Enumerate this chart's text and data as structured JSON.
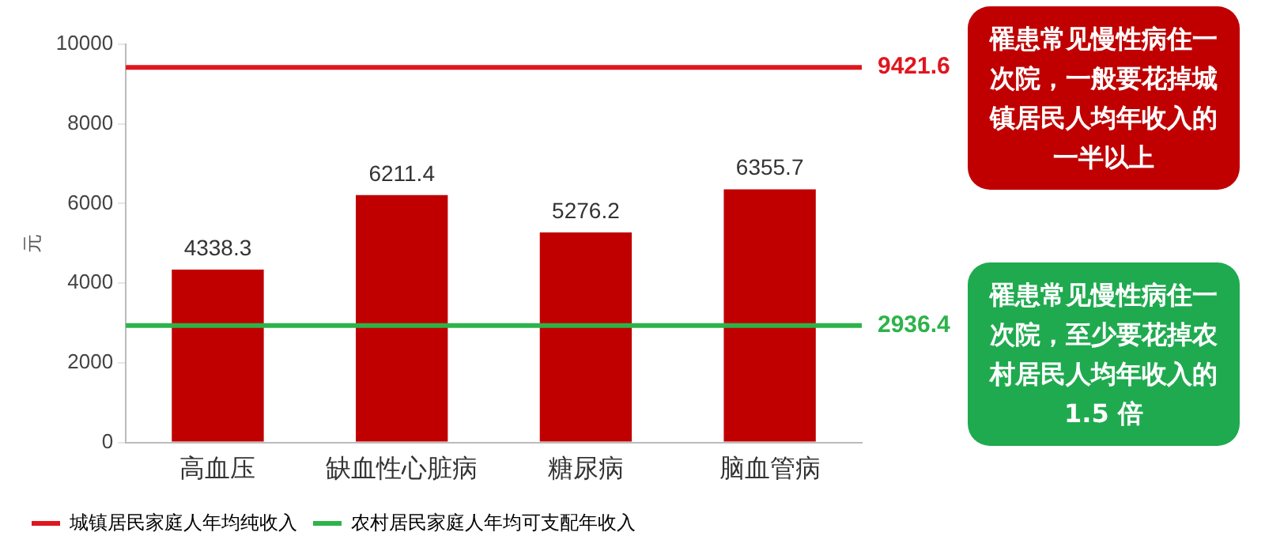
{
  "chart_data": {
    "type": "bar",
    "ylabel": "元",
    "categories": [
      "高血压",
      "缺血性心脏病",
      "糖尿病",
      "脑血管病"
    ],
    "values": [
      4338.3,
      6211.4,
      5276.2,
      6355.7
    ],
    "color": "#c00000",
    "data_labels": true,
    "ylim": [
      0,
      10000
    ],
    "yticks": [
      0,
      2000,
      4000,
      6000,
      8000,
      10000
    ],
    "grid": false,
    "legend": "bottom",
    "ref_lines": [
      {
        "axis": "y",
        "value": 9421.6,
        "label": "城镇居民家庭人年均纯收入",
        "color": "#e0161e"
      },
      {
        "axis": "y",
        "value": 2936.4,
        "label": "农村居民家庭人年均可支配年收入",
        "color": "#2db34a"
      }
    ],
    "annotations": [
      "罹患常见慢性病住一次院，一般要花掉城镇居民人均年收入的一半以上",
      "罹患常见慢性病住一次院，至少要花掉农村居民人均年收入的 1.5 倍",
      "9421.6",
      "2936.4"
    ]
  }
}
